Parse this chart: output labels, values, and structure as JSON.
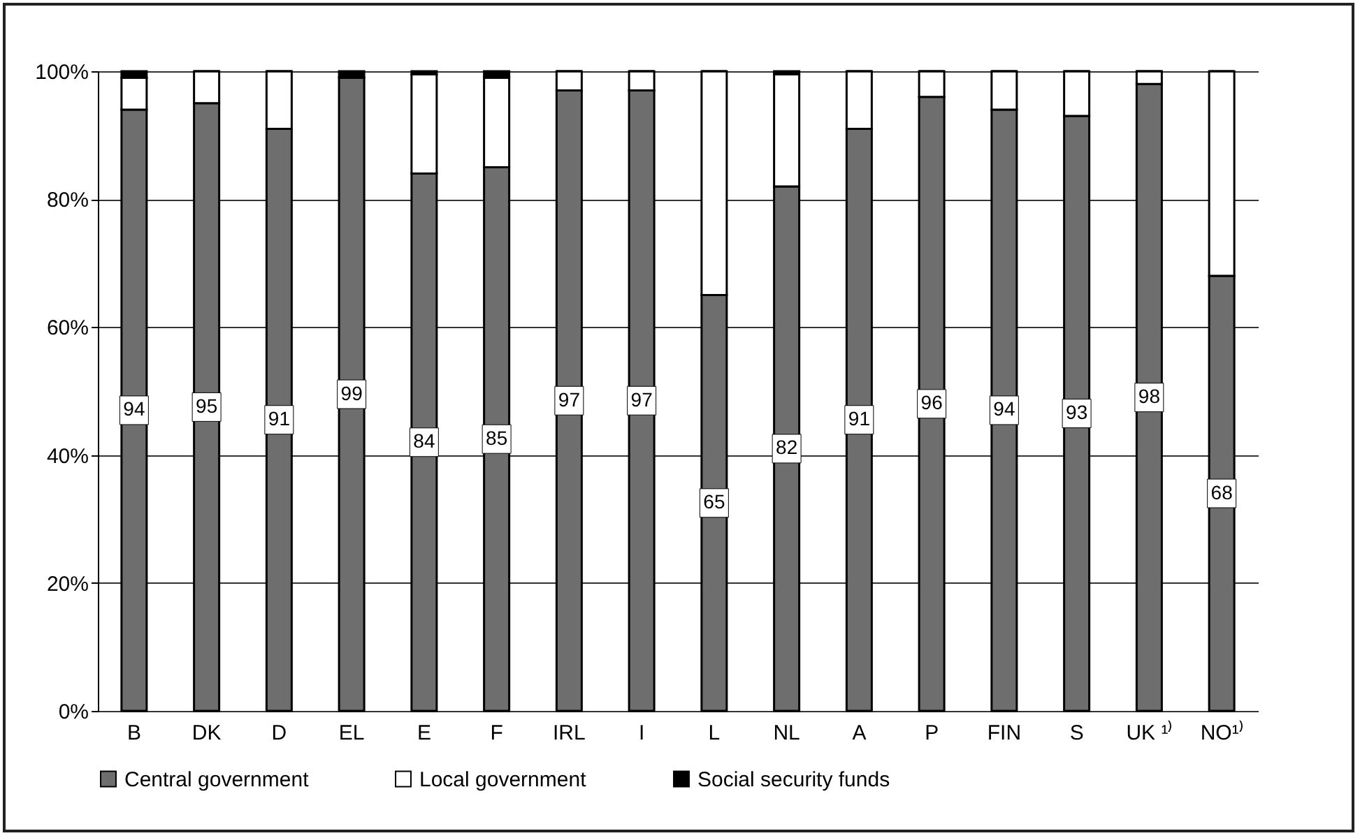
{
  "chart_data": {
    "type": "bar",
    "stacked": true,
    "categories": [
      "B",
      "DK",
      "D",
      "EL",
      "E",
      "F",
      "IRL",
      "I",
      "L",
      "NL",
      "A",
      "P",
      "FIN",
      "S",
      "UK ¹⁾",
      "NO¹⁾"
    ],
    "series": [
      {
        "name": "Central government",
        "color": "#6e6e6e",
        "values": [
          94,
          95,
          91,
          99,
          84,
          85,
          97,
          97,
          65,
          82,
          91,
          96,
          94,
          93,
          98,
          68
        ],
        "value_labels": [
          "94",
          "95",
          "91",
          "99",
          "84",
          "85",
          "97",
          "97",
          "65",
          "82",
          "91",
          "96",
          "94",
          "93",
          "98",
          "68"
        ]
      },
      {
        "name": "Local government",
        "color": "#ffffff",
        "values": [
          5,
          5,
          9,
          0,
          15.5,
          14,
          3,
          3,
          35,
          17.5,
          9,
          4,
          6,
          7,
          2,
          32
        ]
      },
      {
        "name": "Social security funds",
        "color": "#000000",
        "values": [
          1,
          0,
          0,
          1,
          0.5,
          1,
          0,
          0,
          0,
          0.5,
          0,
          0,
          0,
          0,
          0,
          0
        ]
      }
    ],
    "ylim": [
      0,
      100
    ],
    "yticks": [
      {
        "value": 0,
        "label": "0%"
      },
      {
        "value": 20,
        "label": "20%"
      },
      {
        "value": 40,
        "label": "40%"
      },
      {
        "value": 60,
        "label": "60%"
      },
      {
        "value": 80,
        "label": "80%"
      },
      {
        "value": 100,
        "label": "100%"
      }
    ],
    "grid": "y",
    "legend": "bottom"
  }
}
